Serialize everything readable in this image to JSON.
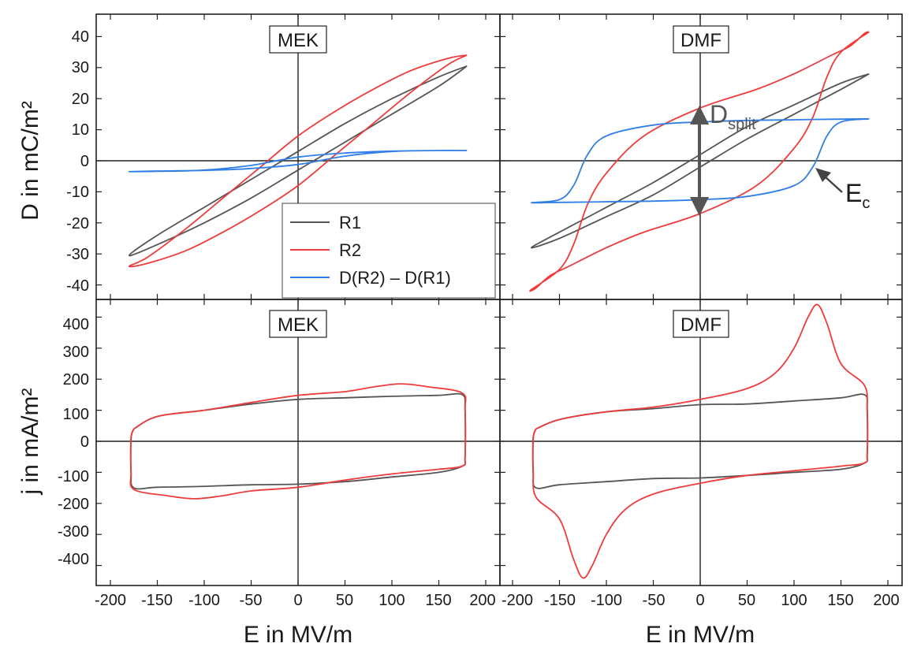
{
  "figure": {
    "axis_titles": {
      "top_y": "D in mC/m²",
      "bottom_y": "j in mA/m²",
      "left_x": "E in MV/m",
      "right_x": "E in MV/m"
    },
    "x_ticks": [
      "-200",
      "-150",
      "-100",
      "-50",
      "0",
      "50",
      "100",
      "150",
      "200"
    ],
    "x_ticks_right": [
      "-200",
      "-150",
      "-100",
      "-50",
      "0",
      "50",
      "100",
      "150",
      "200"
    ],
    "top_y_ticks": [
      "40",
      "30",
      "20",
      "10",
      "0",
      "-10",
      "-20",
      "-30",
      "-40"
    ],
    "bottom_y_ticks": [
      "400",
      "300",
      "200",
      "100",
      "0",
      "-100",
      "-200",
      "-300",
      "-400"
    ],
    "panel_tags": {
      "top_left": "MEK",
      "top_right": "DMF",
      "bottom_left": "MEK",
      "bottom_right": "DMF"
    },
    "legend": [
      "R1",
      "R2",
      "D(R2) – D(R1)"
    ],
    "annotations": {
      "d_split_main": "D",
      "d_split_sub": "split",
      "ec_main": "E",
      "ec_sub": "c"
    },
    "colors": {
      "R1": "#555555",
      "R2": "#ee3b3b",
      "diff": "#2f7fe6",
      "axis": "#222222",
      "arrow": "#555555"
    }
  },
  "chart_data": [
    {
      "panel": "top_left",
      "type": "line",
      "label": "MEK",
      "xlabel": "E in MV/m",
      "ylabel": "D in mC/m²",
      "xlim": [
        -215,
        215
      ],
      "ylim": [
        -45,
        45
      ],
      "series": [
        {
          "name": "R1",
          "color": "#555555",
          "x": [
            180,
            150,
            100,
            50,
            0,
            -50,
            -100,
            -150,
            -180,
            -150,
            -100,
            -50,
            0,
            50,
            100,
            150,
            180
          ],
          "y": [
            30.5,
            27,
            20,
            12,
            3,
            -6,
            -15,
            -24,
            -30.5,
            -27,
            -20,
            -12,
            -3,
            6,
            15,
            24,
            30.5
          ]
        },
        {
          "name": "R2",
          "color": "#ee3b3b",
          "x": [
            180,
            160,
            120,
            80,
            40,
            0,
            -40,
            -80,
            -120,
            -160,
            -180,
            -160,
            -120,
            -80,
            -40,
            0,
            40,
            80,
            120,
            160,
            180
          ],
          "y": [
            34,
            33,
            29,
            23,
            16,
            8,
            -2,
            -12,
            -22,
            -31,
            -34,
            -33,
            -29,
            -23,
            -16,
            -8,
            2,
            12,
            22,
            31,
            34
          ]
        },
        {
          "name": "D(R2) – D(R1)",
          "color": "#2f7fe6",
          "x": [
            180,
            150,
            100,
            50,
            0,
            -50,
            -100,
            -150,
            -180,
            -150,
            -100,
            -50,
            0,
            50,
            100,
            150,
            180
          ],
          "y": [
            3.3,
            3.3,
            3.1,
            2.5,
            1.2,
            -1.5,
            -3,
            -3.4,
            -3.5,
            -3.3,
            -3.1,
            -2.5,
            -1.2,
            1.5,
            3,
            3.3,
            3.3
          ]
        }
      ]
    },
    {
      "panel": "top_right",
      "type": "line",
      "label": "DMF",
      "xlabel": "E in MV/m",
      "ylabel": "",
      "xlim": [
        -215,
        215
      ],
      "ylim": [
        -45,
        45
      ],
      "series": [
        {
          "name": "R1",
          "color": "#555555",
          "x": [
            180,
            150,
            100,
            50,
            0,
            -50,
            -100,
            -150,
            -180,
            -150,
            -100,
            -50,
            0,
            50,
            100,
            150,
            180
          ],
          "y": [
            28,
            25,
            18,
            11,
            2,
            -7,
            -15,
            -23,
            -28,
            -25,
            -18,
            -11,
            -2,
            7,
            15,
            23,
            28
          ]
        },
        {
          "name": "R2",
          "color": "#ee3b3b",
          "x": [
            180,
            175,
            160,
            140,
            100,
            60,
            0,
            -60,
            -100,
            -120,
            -135,
            -150,
            -180,
            -175,
            -160,
            -140,
            -100,
            -60,
            0,
            60,
            100,
            120,
            135,
            150,
            180
          ],
          "y": [
            41.5,
            41,
            37,
            34,
            28,
            23,
            17,
            8,
            -4,
            -14,
            -27,
            -35,
            -41.5,
            -41,
            -37,
            -34,
            -28,
            -23,
            -17,
            -8,
            4,
            14,
            27,
            35,
            41.5
          ]
        },
        {
          "name": "D(R2) – D(R1)",
          "color": "#2f7fe6",
          "x": [
            180,
            150,
            120,
            100,
            50,
            0,
            -50,
            -100,
            -120,
            -135,
            -150,
            -180,
            -150,
            -120,
            -100,
            -50,
            0,
            50,
            100,
            120,
            135,
            150,
            180
          ],
          "y": [
            13.5,
            13.4,
            13.3,
            13.2,
            13,
            12.5,
            11.5,
            8,
            2,
            -8,
            -12.5,
            -13.5,
            -13.4,
            -13.3,
            -13.2,
            -13,
            -12.5,
            -11.5,
            -8,
            -2,
            8,
            12.5,
            13.5
          ]
        }
      ]
    },
    {
      "panel": "bottom_left",
      "type": "line",
      "label": "MEK",
      "xlabel": "E in MV/m",
      "ylabel": "j in mA/m²",
      "xlim": [
        -215,
        215
      ],
      "ylim": [
        -480,
        480
      ],
      "series": [
        {
          "name": "R1",
          "color": "#555555",
          "x": [
            -175,
            -150,
            -100,
            -50,
            0,
            50,
            100,
            150,
            175,
            178,
            178,
            175,
            150,
            100,
            50,
            0,
            -50,
            -100,
            -150,
            -175,
            -178,
            -178,
            -175
          ],
          "y": [
            40,
            80,
            100,
            120,
            135,
            140,
            145,
            148,
            150,
            100,
            -50,
            -80,
            -100,
            -115,
            -130,
            -138,
            -140,
            -145,
            -148,
            -150,
            -100,
            10,
            40
          ]
        },
        {
          "name": "R2",
          "color": "#ee3b3b",
          "x": [
            -175,
            -150,
            -100,
            -50,
            0,
            50,
            80,
            110,
            140,
            175,
            178,
            178,
            175,
            150,
            100,
            50,
            0,
            -50,
            -80,
            -110,
            -140,
            -175,
            -178,
            -178,
            -175
          ],
          "y": [
            40,
            80,
            100,
            125,
            148,
            160,
            175,
            185,
            175,
            155,
            100,
            -50,
            -80,
            -90,
            -105,
            -125,
            -148,
            -160,
            -175,
            -185,
            -175,
            -155,
            -100,
            10,
            40
          ]
        }
      ]
    },
    {
      "panel": "bottom_right",
      "type": "line",
      "label": "DMF",
      "xlabel": "E in MV/m",
      "ylabel": "",
      "xlim": [
        -215,
        215
      ],
      "ylim": [
        -480,
        480
      ],
      "series": [
        {
          "name": "R1",
          "color": "#555555",
          "x": [
            -175,
            -150,
            -100,
            -50,
            0,
            50,
            100,
            150,
            175,
            178,
            178,
            175,
            150,
            100,
            50,
            0,
            -50,
            -100,
            -150,
            -175,
            -178,
            -178,
            -175
          ],
          "y": [
            40,
            70,
            95,
            105,
            118,
            120,
            130,
            140,
            150,
            100,
            -40,
            -70,
            -90,
            -100,
            -110,
            -118,
            -120,
            -130,
            -140,
            -150,
            -100,
            10,
            40
          ]
        },
        {
          "name": "R2",
          "color": "#ee3b3b",
          "x": [
            -175,
            -150,
            -100,
            -50,
            0,
            50,
            80,
            100,
            115,
            125,
            135,
            150,
            175,
            178,
            178,
            175,
            150,
            100,
            50,
            0,
            -50,
            -80,
            -100,
            -115,
            -125,
            -135,
            -150,
            -175,
            -178,
            -178,
            -175
          ],
          "y": [
            40,
            70,
            95,
            110,
            135,
            170,
            220,
            300,
            400,
            440,
            380,
            250,
            180,
            100,
            -40,
            -70,
            -80,
            -95,
            -110,
            -135,
            -170,
            -220,
            -300,
            -400,
            -440,
            -380,
            -250,
            -180,
            -100,
            10,
            40
          ]
        }
      ]
    }
  ]
}
